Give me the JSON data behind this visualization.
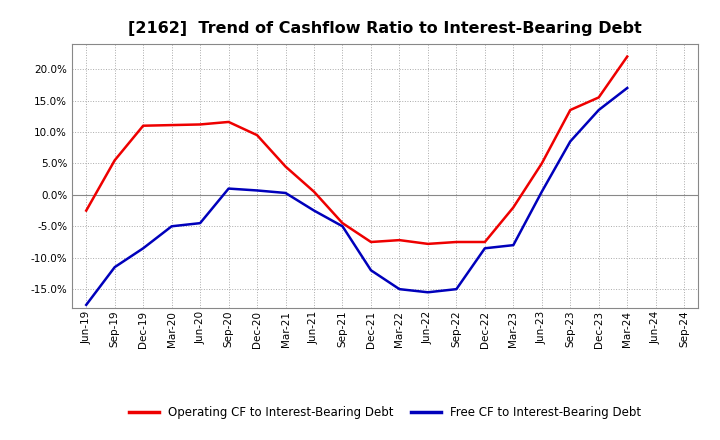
{
  "title": "[2162]  Trend of Cashflow Ratio to Interest-Bearing Debt",
  "x_labels": [
    "Jun-19",
    "Sep-19",
    "Dec-19",
    "Mar-20",
    "Jun-20",
    "Sep-20",
    "Dec-20",
    "Mar-21",
    "Jun-21",
    "Sep-21",
    "Dec-21",
    "Mar-22",
    "Jun-22",
    "Sep-22",
    "Dec-22",
    "Mar-23",
    "Jun-23",
    "Sep-23",
    "Dec-23",
    "Mar-24",
    "Jun-24",
    "Sep-24"
  ],
  "operating_cf": [
    -2.5,
    5.5,
    11.0,
    11.1,
    11.2,
    11.6,
    9.5,
    4.5,
    0.5,
    -4.5,
    -7.5,
    -7.2,
    -7.8,
    -7.5,
    -7.5,
    -2.0,
    5.0,
    13.5,
    15.5,
    22.0,
    null,
    null
  ],
  "free_cf": [
    -17.5,
    -11.5,
    -8.5,
    -5.0,
    -4.5,
    1.0,
    0.7,
    0.3,
    -2.5,
    -5.0,
    -12.0,
    -15.0,
    -15.5,
    -15.0,
    -8.5,
    -8.0,
    0.5,
    8.5,
    13.5,
    17.0,
    null,
    null
  ],
  "operating_color": "#EE0000",
  "free_color": "#0000BB",
  "ylim": [
    -18.0,
    24.0
  ],
  "yticks": [
    -15.0,
    -10.0,
    -5.0,
    0.0,
    5.0,
    10.0,
    15.0,
    20.0
  ],
  "legend_labels": [
    "Operating CF to Interest-Bearing Debt",
    "Free CF to Interest-Bearing Debt"
  ],
  "background_color": "#FFFFFF",
  "plot_bg_color": "#FFFFFF",
  "grid_color": "#AAAAAA",
  "title_fontsize": 11.5,
  "tick_fontsize": 7.5,
  "legend_fontsize": 8.5
}
